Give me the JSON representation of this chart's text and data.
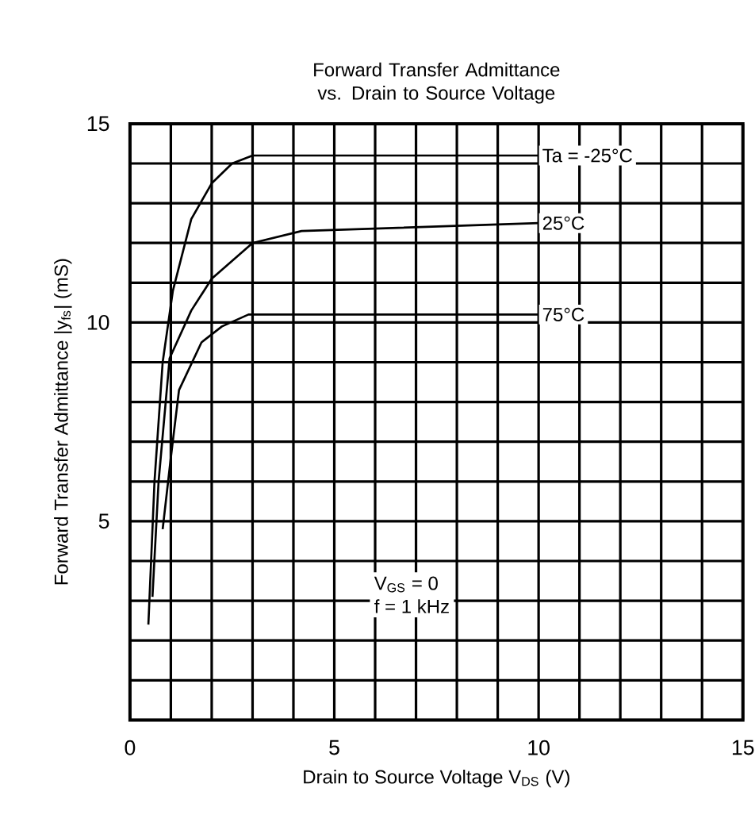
{
  "chart_data": {
    "type": "line",
    "title": "Forward Transfer Admittance vs. Drain to Source Voltage",
    "xlabel": "Drain to Source Voltage V$_{DS}$ (V)",
    "ylabel": "Forward Transfer Admittance |y$_{fs}$| (mS)",
    "xlim": [
      0,
      15
    ],
    "ylim": [
      0,
      15
    ],
    "xticks": [
      0,
      {
        "value": 1,
        "label": null
      },
      {
        "value": 2,
        "label": null
      },
      {
        "value": 3,
        "label": null
      },
      {
        "value": 4,
        "label": null
      },
      5,
      {
        "value": 6,
        "label": null
      },
      {
        "value": 7,
        "label": null
      },
      {
        "value": 8,
        "label": null
      },
      {
        "value": 9,
        "label": null
      },
      10,
      {
        "value": 11,
        "label": null
      },
      {
        "value": 12,
        "label": null
      },
      {
        "value": 13,
        "label": null
      },
      {
        "value": 14,
        "label": null
      },
      15
    ],
    "yticks": [
      {
        "value": 0,
        "label": null
      },
      {
        "value": 1,
        "label": null
      },
      {
        "value": 2,
        "label": null
      },
      {
        "value": 3,
        "label": null
      },
      {
        "value": 4,
        "label": null
      },
      5,
      {
        "value": 6,
        "label": null
      },
      {
        "value": 7,
        "label": null
      },
      {
        "value": 8,
        "label": null
      },
      {
        "value": 9,
        "label": null
      },
      10,
      {
        "value": 11,
        "label": null
      },
      {
        "value": 12,
        "label": null
      },
      {
        "value": 13,
        "label": null
      },
      {
        "value": 14,
        "label": null
      },
      15
    ],
    "grid": true,
    "line_style": "solid",
    "marker": "none",
    "series": [
      {
        "name": "Ta = -25°C",
        "color": "#000000",
        "x": [
          0.45,
          0.6,
          0.8,
          1.05,
          1.5,
          2.0,
          2.5,
          3.0,
          10.0
        ],
        "values": [
          2.4,
          6.0,
          9.0,
          10.8,
          12.6,
          13.5,
          14.0,
          14.2,
          14.2
        ]
      },
      {
        "name": "25°C",
        "color": "#000000",
        "x": [
          0.55,
          0.7,
          0.97,
          1.5,
          2.0,
          3.0,
          4.2,
          10.0
        ],
        "values": [
          3.1,
          6.0,
          9.1,
          10.3,
          11.1,
          12.0,
          12.3,
          12.5
        ]
      },
      {
        "name": "75°C",
        "color": "#000000",
        "x": [
          0.8,
          1.0,
          1.2,
          1.75,
          2.25,
          2.9,
          10.0
        ],
        "values": [
          4.8,
          6.6,
          8.3,
          9.5,
          9.9,
          10.2,
          10.2
        ]
      }
    ],
    "annotations": [
      "V$_{GS}$ = 0",
      "f = 1 kHz"
    ]
  }
}
